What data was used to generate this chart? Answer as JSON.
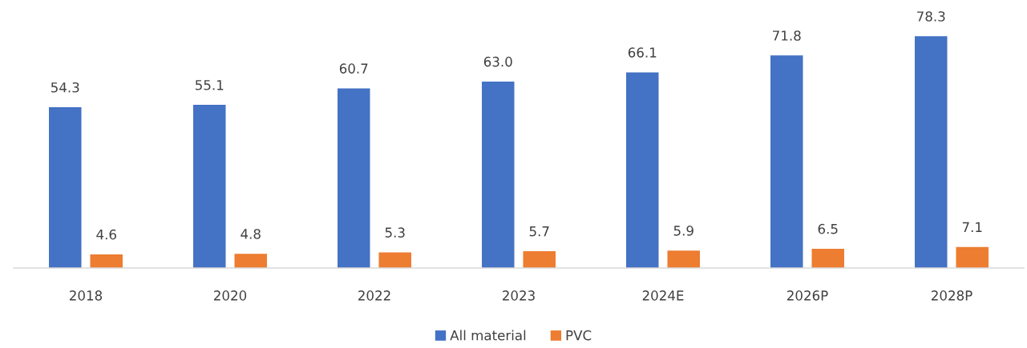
{
  "chart_data": {
    "type": "bar",
    "categories": [
      "2018",
      "2020",
      "2022",
      "2023",
      "2024E",
      "2026P",
      "2028P"
    ],
    "series": [
      {
        "name": "All material",
        "color": "#4472c4",
        "values": [
          54.3,
          55.1,
          60.7,
          63.0,
          66.1,
          71.8,
          78.3
        ],
        "value_labels": [
          "54.3",
          "55.1",
          "60.7",
          "63.0",
          "66.1",
          "71.8",
          "78.3"
        ]
      },
      {
        "name": "PVC",
        "color": "#ed7d31",
        "values": [
          4.6,
          4.8,
          5.3,
          5.7,
          5.9,
          6.5,
          7.1
        ],
        "value_labels": [
          "4.6",
          "4.8",
          "5.3",
          "5.7",
          "5.9",
          "6.5",
          "7.1"
        ]
      }
    ],
    "grid": false,
    "legend": "bottom",
    "tick_labels": "x"
  }
}
